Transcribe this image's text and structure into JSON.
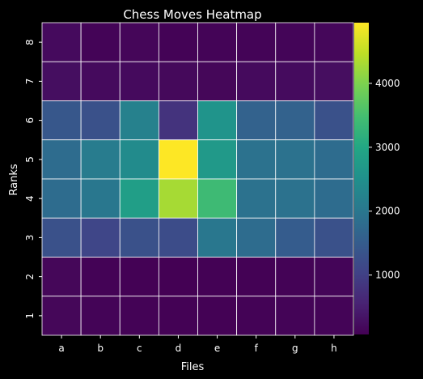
{
  "chart_data": {
    "type": "heatmap",
    "title": "Chess Moves Heatmap",
    "xlabel": "Files",
    "ylabel": "Ranks",
    "x_categories": [
      "a",
      "b",
      "c",
      "d",
      "e",
      "f",
      "g",
      "h"
    ],
    "y_categories": [
      "8",
      "7",
      "6",
      "5",
      "4",
      "3",
      "2",
      "1"
    ],
    "values": [
      [
        200,
        120,
        140,
        100,
        110,
        120,
        130,
        160
      ],
      [
        250,
        200,
        200,
        180,
        150,
        200,
        220,
        260
      ],
      [
        1400,
        1300,
        2200,
        800,
        2600,
        1600,
        1600,
        1300
      ],
      [
        1800,
        2100,
        2400,
        4950,
        2700,
        1900,
        1900,
        1800
      ],
      [
        1800,
        2000,
        2800,
        4300,
        3400,
        1900,
        1900,
        1800
      ],
      [
        1300,
        1100,
        1300,
        1200,
        2000,
        1800,
        1500,
        1300
      ],
      [
        150,
        100,
        90,
        70,
        80,
        90,
        100,
        130
      ],
      [
        150,
        110,
        100,
        80,
        90,
        100,
        110,
        120
      ]
    ],
    "colormap": "viridis",
    "vmin": 70,
    "vmax": 4950,
    "colorbar_ticks": [
      "1000",
      "2000",
      "3000",
      "4000"
    ],
    "grid": true,
    "background": "#000000",
    "text_color": "#ffffff",
    "cell_border_color": "#ffffff"
  }
}
